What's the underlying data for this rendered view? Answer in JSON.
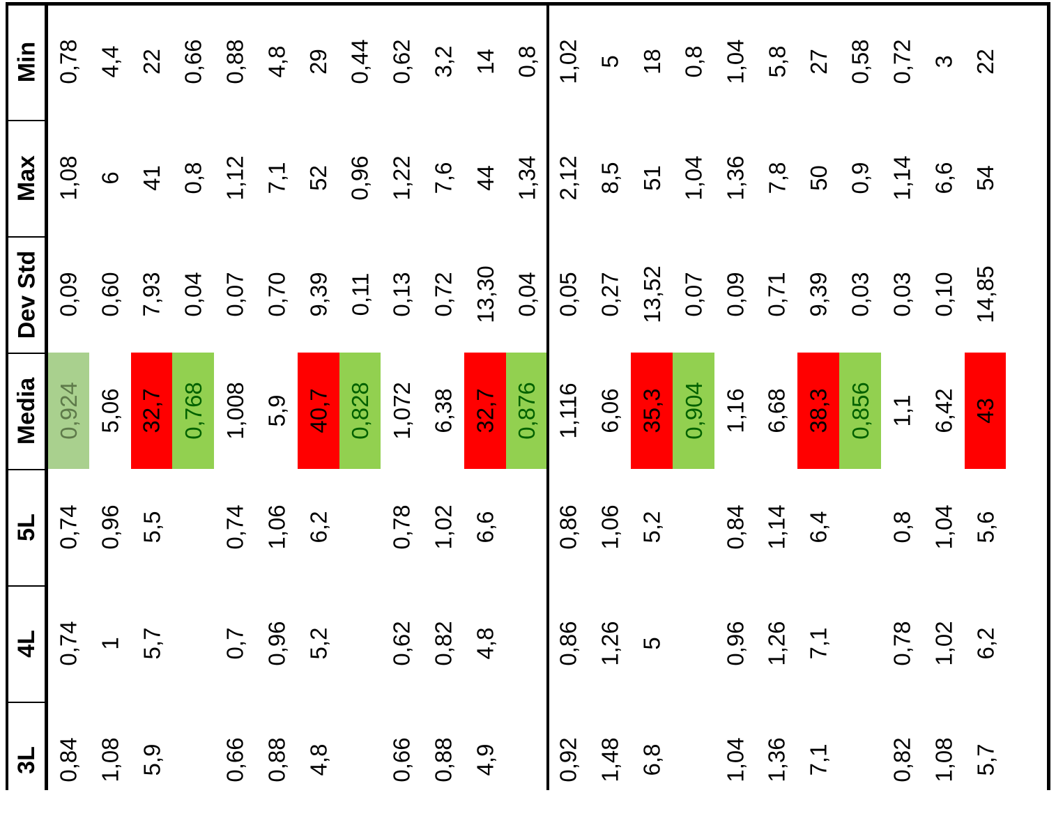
{
  "headers": [
    "3L",
    "4L",
    "5L",
    "Media",
    "Dev Std",
    "Max",
    "Min"
  ],
  "rows": [
    {
      "v": [
        "0,84",
        "0,74",
        "0,74",
        "0,924",
        "0,09",
        "1,08",
        "0,78"
      ],
      "hl": "lightgreen"
    },
    {
      "v": [
        "1,08",
        "1",
        "0,96",
        "5,06",
        "0,60",
        "6",
        "4,4"
      ],
      "hl": ""
    },
    {
      "v": [
        "5,9",
        "5,7",
        "5,5",
        "32,7",
        "7,93",
        "41",
        "22"
      ],
      "hl": "red"
    },
    {
      "v": [
        "",
        "",
        "",
        "0,768",
        "0,04",
        "0,8",
        "0,66"
      ],
      "hl": "green"
    },
    {
      "v": [
        "0,66",
        "0,7",
        "0,74",
        "1,008",
        "0,07",
        "1,12",
        "0,88"
      ],
      "hl": ""
    },
    {
      "v": [
        "0,88",
        "0,96",
        "1,06",
        "5,9",
        "0,70",
        "7,1",
        "4,8"
      ],
      "hl": ""
    },
    {
      "v": [
        "4,8",
        "5,2",
        "6,2",
        "40,7",
        "9,39",
        "52",
        "29"
      ],
      "hl": "red"
    },
    {
      "v": [
        "",
        "",
        "",
        "0,828",
        "0,11",
        "0,96",
        "0,44"
      ],
      "hl": "green"
    },
    {
      "v": [
        "0,66",
        "0,62",
        "0,78",
        "1,072",
        "0,13",
        "1,22",
        "0,62"
      ],
      "hl": ""
    },
    {
      "v": [
        "0,88",
        "0,82",
        "1,02",
        "6,38",
        "0,72",
        "7,6",
        "3,2"
      ],
      "hl": ""
    },
    {
      "v": [
        "4,9",
        "4,8",
        "6,6",
        "32,7",
        "13,30",
        "44",
        "14"
      ],
      "hl": "red"
    },
    {
      "v": [
        "",
        "",
        "",
        "0,876",
        "0,04",
        "1,34",
        "0,8"
      ],
      "hl": "green"
    },
    {
      "v": [
        "0,92",
        "0,86",
        "0,86",
        "1,116",
        "0,05",
        "2,12",
        "1,02"
      ],
      "hl": ""
    },
    {
      "v": [
        "1,48",
        "1,26",
        "1,06",
        "6,06",
        "0,27",
        "8,5",
        "5"
      ],
      "hl": ""
    },
    {
      "v": [
        "6,8",
        "5",
        "5,2",
        "35,3",
        "13,52",
        "51",
        "18"
      ],
      "hl": "red"
    },
    {
      "v": [
        "",
        "",
        "",
        "0,904",
        "0,07",
        "1,04",
        "0,8"
      ],
      "hl": "green"
    },
    {
      "v": [
        "1,04",
        "0,96",
        "0,84",
        "1,16",
        "0,09",
        "1,36",
        "1,04"
      ],
      "hl": ""
    },
    {
      "v": [
        "1,36",
        "1,26",
        "1,14",
        "6,68",
        "0,71",
        "7,8",
        "5,8"
      ],
      "hl": ""
    },
    {
      "v": [
        "7,1",
        "7,1",
        "6,4",
        "38,3",
        "9,39",
        "50",
        "27"
      ],
      "hl": "red"
    },
    {
      "v": [
        "",
        "",
        "",
        "0,856",
        "0,03",
        "0,9",
        "0,58"
      ],
      "hl": "green"
    },
    {
      "v": [
        "0,82",
        "0,78",
        "0,8",
        "1,1",
        "0,03",
        "1,14",
        "0,72"
      ],
      "hl": ""
    },
    {
      "v": [
        "1,08",
        "1,02",
        "1,04",
        "6,42",
        "0,10",
        "6,6",
        "3"
      ],
      "hl": ""
    },
    {
      "v": [
        "5,7",
        "6,2",
        "5,6",
        "43",
        "14,85",
        "54",
        "22"
      ],
      "hl": "red"
    }
  ],
  "colors": {
    "red": "#ff0000",
    "green": "#92d050",
    "lightgreen": "#a9d08e",
    "green_text": "#006100",
    "lightgreen_text": "#5e7a4a"
  }
}
